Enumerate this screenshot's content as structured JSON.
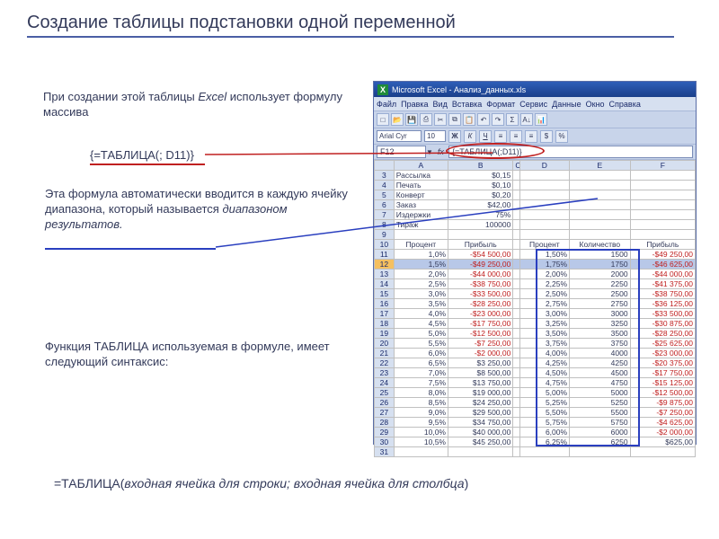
{
  "title": "Создание таблицы подстановки одной переменной",
  "paragraph1_a": "При создании этой таблицы ",
  "paragraph1_b": "Excel",
  "paragraph1_c": " использует формулу массива",
  "formula_inline": "{=ТАБЛИЦА(; D11)}",
  "paragraph2_a": "Эта формула автоматически вводится в каждую ячейку диапазона, который называется ",
  "paragraph2_b": "диапазоном результатов.",
  "paragraph3": "Функция ТАБЛИЦА используемая в формуле, имеет следующий синтаксис:",
  "syntax_a": "=ТАБЛИЦА(",
  "syntax_b": "входная ячейка для строки; входная ячейка для столбца",
  "syntax_c": ")",
  "excel": {
    "title": "Microsoft Excel - Анализ_данных.xls",
    "menu": [
      "Файл",
      "Правка",
      "Вид",
      "Вставка",
      "Формат",
      "Сервис",
      "Данные",
      "Окно",
      "Справка"
    ],
    "font_name": "Arial Cyr",
    "font_size": "10",
    "namebox": "F12",
    "formula": "{=ТАБЛИЦА(;D11)}",
    "columns": [
      "A",
      "B",
      "C",
      "D",
      "E",
      "F"
    ],
    "labels": {
      "r3": {
        "A": "Рассылка",
        "B": "$0,15"
      },
      "r4": {
        "A": "Печать",
        "B": "$0,10"
      },
      "r5": {
        "A": "Конверт",
        "B": "$0,20"
      },
      "r6": {
        "A": "Заказ",
        "B": "$42,00"
      },
      "r7": {
        "A": "Издержки",
        "B": "75%"
      },
      "r8": {
        "A": "Тираж",
        "B": "100000"
      }
    },
    "headers": {
      "A": "Процент",
      "B": "Прибыль",
      "D": "Процент",
      "E": "Количество",
      "F": "Прибыль"
    },
    "rows": [
      {
        "n": 11,
        "A": "1,0%",
        "B": "-$54 500,00",
        "D": "1,50%",
        "E": "1500",
        "F": "-$49 250,00"
      },
      {
        "n": 12,
        "A": "1,5%",
        "B": "-$49 250,00",
        "D": "1,75%",
        "E": "1750",
        "F": "-$46 625,00"
      },
      {
        "n": 13,
        "A": "2,0%",
        "B": "-$44 000,00",
        "D": "2,00%",
        "E": "2000",
        "F": "-$44 000,00"
      },
      {
        "n": 14,
        "A": "2,5%",
        "B": "-$38 750,00",
        "D": "2,25%",
        "E": "2250",
        "F": "-$41 375,00"
      },
      {
        "n": 15,
        "A": "3,0%",
        "B": "-$33 500,00",
        "D": "2,50%",
        "E": "2500",
        "F": "-$38 750,00"
      },
      {
        "n": 16,
        "A": "3,5%",
        "B": "-$28 250,00",
        "D": "2,75%",
        "E": "2750",
        "F": "-$36 125,00"
      },
      {
        "n": 17,
        "A": "4,0%",
        "B": "-$23 000,00",
        "D": "3,00%",
        "E": "3000",
        "F": "-$33 500,00"
      },
      {
        "n": 18,
        "A": "4,5%",
        "B": "-$17 750,00",
        "D": "3,25%",
        "E": "3250",
        "F": "-$30 875,00"
      },
      {
        "n": 19,
        "A": "5,0%",
        "B": "-$12 500,00",
        "D": "3,50%",
        "E": "3500",
        "F": "-$28 250,00"
      },
      {
        "n": 20,
        "A": "5,5%",
        "B": "-$7 250,00",
        "D": "3,75%",
        "E": "3750",
        "F": "-$25 625,00"
      },
      {
        "n": 21,
        "A": "6,0%",
        "B": "-$2 000,00",
        "D": "4,00%",
        "E": "4000",
        "F": "-$23 000,00"
      },
      {
        "n": 22,
        "A": "6,5%",
        "B": "$3 250,00",
        "D": "4,25%",
        "E": "4250",
        "F": "-$20 375,00"
      },
      {
        "n": 23,
        "A": "7,0%",
        "B": "$8 500,00",
        "D": "4,50%",
        "E": "4500",
        "F": "-$17 750,00"
      },
      {
        "n": 24,
        "A": "7,5%",
        "B": "$13 750,00",
        "D": "4,75%",
        "E": "4750",
        "F": "-$15 125,00"
      },
      {
        "n": 25,
        "A": "8,0%",
        "B": "$19 000,00",
        "D": "5,00%",
        "E": "5000",
        "F": "-$12 500,00"
      },
      {
        "n": 26,
        "A": "8,5%",
        "B": "$24 250,00",
        "D": "5,25%",
        "E": "5250",
        "F": "-$9 875,00"
      },
      {
        "n": 27,
        "A": "9,0%",
        "B": "$29 500,00",
        "D": "5,50%",
        "E": "5500",
        "F": "-$7 250,00"
      },
      {
        "n": 28,
        "A": "9,5%",
        "B": "$34 750,00",
        "D": "5,75%",
        "E": "5750",
        "F": "-$4 625,00"
      },
      {
        "n": 29,
        "A": "10,0%",
        "B": "$40 000,00",
        "D": "6,00%",
        "E": "6000",
        "F": "-$2 000,00"
      },
      {
        "n": 30,
        "A": "10,5%",
        "B": "$45 250,00",
        "D": "6,25%",
        "E": "6250",
        "F": "$625,00"
      }
    ]
  }
}
